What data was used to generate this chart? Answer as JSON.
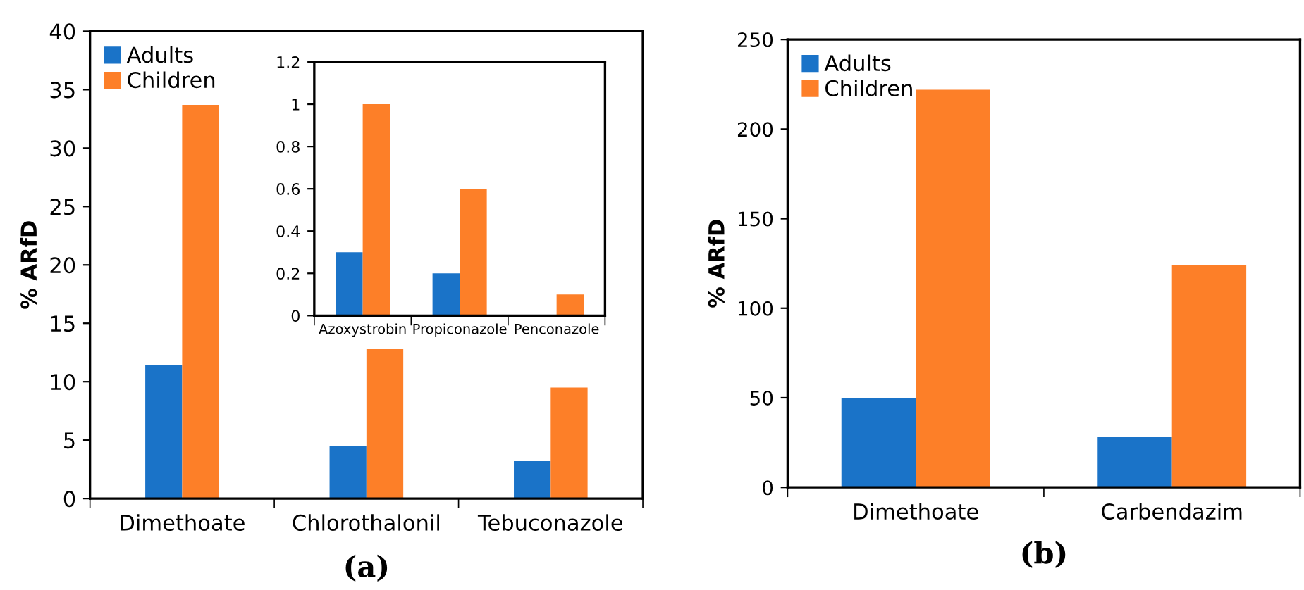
{
  "chart_data": [
    {
      "type": "bar",
      "categories": [
        "Dimethoate",
        "Chlorothalonil",
        "Tebuconazole"
      ],
      "ylabel": "% ARfD",
      "ylim": [
        0,
        40
      ],
      "yticks": [
        0,
        5,
        10,
        15,
        20,
        25,
        30,
        35,
        40
      ],
      "legend": "top left",
      "grid": false,
      "annotations": [
        "(a)"
      ],
      "series": [
        {
          "name": "Adults",
          "color": "#1a73c8",
          "values": [
            11.4,
            4.5,
            3.2
          ]
        },
        {
          "name": "Children",
          "color": "#fd7f28",
          "values": [
            33.7,
            12.8,
            9.5
          ]
        }
      ]
    },
    {
      "type": "bar",
      "categories": [
        "Azoxystrobin",
        "Propiconazole",
        "Penconazole"
      ],
      "ylim": [
        0,
        1.2
      ],
      "yticks": [
        0,
        0.2,
        0.4,
        0.6,
        0.8,
        1,
        1.2
      ],
      "grid": false,
      "series": [
        {
          "color": "#1a73c8",
          "values": [
            0.3,
            0.2,
            null
          ]
        },
        {
          "color": "#fd7f28",
          "values": [
            1.0,
            0.6,
            0.1
          ]
        }
      ]
    },
    {
      "type": "bar",
      "categories": [
        "Dimethoate",
        "Carbendazim"
      ],
      "ylabel": "% ARfD",
      "ylim": [
        0,
        250
      ],
      "yticks": [
        0,
        50,
        100,
        150,
        200,
        250
      ],
      "legend": "top left",
      "grid": false,
      "annotations": [
        "(b)"
      ],
      "series": [
        {
          "name": "Adults",
          "color": "#1a73c8",
          "values": [
            50,
            28
          ]
        },
        {
          "name": "Children",
          "color": "#fd7f28",
          "values": [
            222,
            124
          ]
        }
      ]
    }
  ]
}
